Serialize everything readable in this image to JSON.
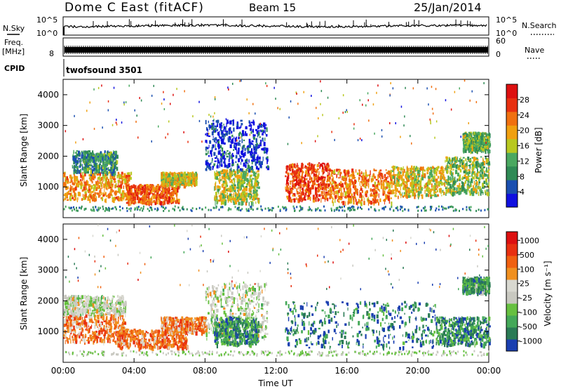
{
  "header": {
    "station": "Dome C East (fitACF)",
    "beam": "Beam 15",
    "date": "25/Jan/2014"
  },
  "strip_labels": {
    "nsky": "N.Sky",
    "nsky_ticks": [
      "10^5",
      "10^0"
    ],
    "nsearch": "N.Search",
    "nsearch_ticks": [
      "10^5",
      "10^0"
    ],
    "freq": "Freq.",
    "freq_unit": "[MHz]",
    "freq_ticks": [
      "8"
    ],
    "nave": "Nave",
    "nave_ticks": [
      "60",
      "0"
    ],
    "cpid": "CPID",
    "cpid_value": "twofsound 3501"
  },
  "colors": {
    "power": [
      "#1010e0",
      "#1a4fb0",
      "#2f8a55",
      "#4aa860",
      "#b8c820",
      "#f0a010",
      "#f07010",
      "#e83010",
      "#dd1010"
    ],
    "velocity": [
      "#1a3fb0",
      "#2a7a55",
      "#44a858",
      "#66c040",
      "#c8c8c0",
      "#d8d8d0",
      "#f09020",
      "#f06010",
      "#e83010",
      "#dd1010"
    ]
  },
  "chart_data": [
    {
      "type": "heatmap",
      "quantity": "power",
      "ylabel": "Slant Range [km]",
      "xlabel": "",
      "x_ticks": [
        "00:00",
        "04:00",
        "08:00",
        "12:00",
        "16:00",
        "20:00",
        "00:00"
      ],
      "y_ticks": [
        "1000",
        "2000",
        "3000",
        "4000"
      ],
      "colorbar_label": "Power [dB]",
      "colorbar_ticks": [
        "4",
        "8",
        "12",
        "16",
        "20",
        "24",
        "28"
      ],
      "features": [
        {
          "t0": 0.0,
          "t1": 3.8,
          "r0": 600,
          "r1": 1500,
          "level": 0.65
        },
        {
          "t0": 0.5,
          "t1": 3.0,
          "r0": 1500,
          "r1": 2200,
          "level": 0.3
        },
        {
          "t0": 3.5,
          "t1": 6.5,
          "r0": 500,
          "r1": 1100,
          "level": 0.75
        },
        {
          "t0": 5.5,
          "t1": 7.5,
          "r0": 1100,
          "r1": 1500,
          "level": 0.55
        },
        {
          "t0": 8.5,
          "t1": 11.0,
          "r0": 500,
          "r1": 1600,
          "level": 0.5
        },
        {
          "t0": 8.0,
          "t1": 11.5,
          "r0": 1600,
          "r1": 3200,
          "level": 0.1
        },
        {
          "t0": 12.5,
          "t1": 15.0,
          "r0": 600,
          "r1": 1800,
          "level": 0.8
        },
        {
          "t0": 15.0,
          "t1": 18.5,
          "r0": 500,
          "r1": 1600,
          "level": 0.7
        },
        {
          "t0": 18.5,
          "t1": 21.5,
          "r0": 700,
          "r1": 1700,
          "level": 0.55
        },
        {
          "t0": 21.5,
          "t1": 24.0,
          "r0": 800,
          "r1": 2000,
          "level": 0.45
        },
        {
          "t0": 22.5,
          "t1": 24.0,
          "r0": 2200,
          "r1": 2800,
          "level": 0.4
        }
      ]
    },
    {
      "type": "heatmap",
      "quantity": "velocity",
      "ylabel": "Slant Range [km]",
      "xlabel": "Time UT",
      "x_ticks": [
        "00:00",
        "04:00",
        "08:00",
        "12:00",
        "16:00",
        "20:00",
        "00:00"
      ],
      "y_ticks": [
        "1000",
        "2000",
        "3000",
        "4000"
      ],
      "colorbar_label": "Velocity [m s⁻¹]",
      "colorbar_ticks": [
        "1000",
        "500",
        "100",
        "25",
        "-25",
        "-100",
        "-500",
        "-1000"
      ],
      "features": [
        {
          "t0": 0.0,
          "t1": 3.5,
          "r0": 700,
          "r1": 1600,
          "level": 0.7
        },
        {
          "t0": 0.0,
          "t1": 3.5,
          "r0": 1600,
          "r1": 2200,
          "level": 0.45
        },
        {
          "t0": 3.0,
          "t1": 7.0,
          "r0": 500,
          "r1": 1100,
          "level": 0.72
        },
        {
          "t0": 5.5,
          "t1": 8.0,
          "r0": 1000,
          "r1": 1500,
          "level": 0.7
        },
        {
          "t0": 8.0,
          "t1": 11.5,
          "r0": 800,
          "r1": 2600,
          "level": 0.45
        },
        {
          "t0": 8.5,
          "t1": 11.0,
          "r0": 600,
          "r1": 1500,
          "level": 0.2
        },
        {
          "t0": 12.5,
          "t1": 21.0,
          "r0": 500,
          "r1": 2000,
          "level": 0.15
        },
        {
          "t0": 21.0,
          "t1": 24.0,
          "r0": 600,
          "r1": 1500,
          "level": 0.2
        },
        {
          "t0": 22.5,
          "t1": 24.0,
          "r0": 2300,
          "r1": 2800,
          "level": 0.25
        }
      ]
    }
  ]
}
